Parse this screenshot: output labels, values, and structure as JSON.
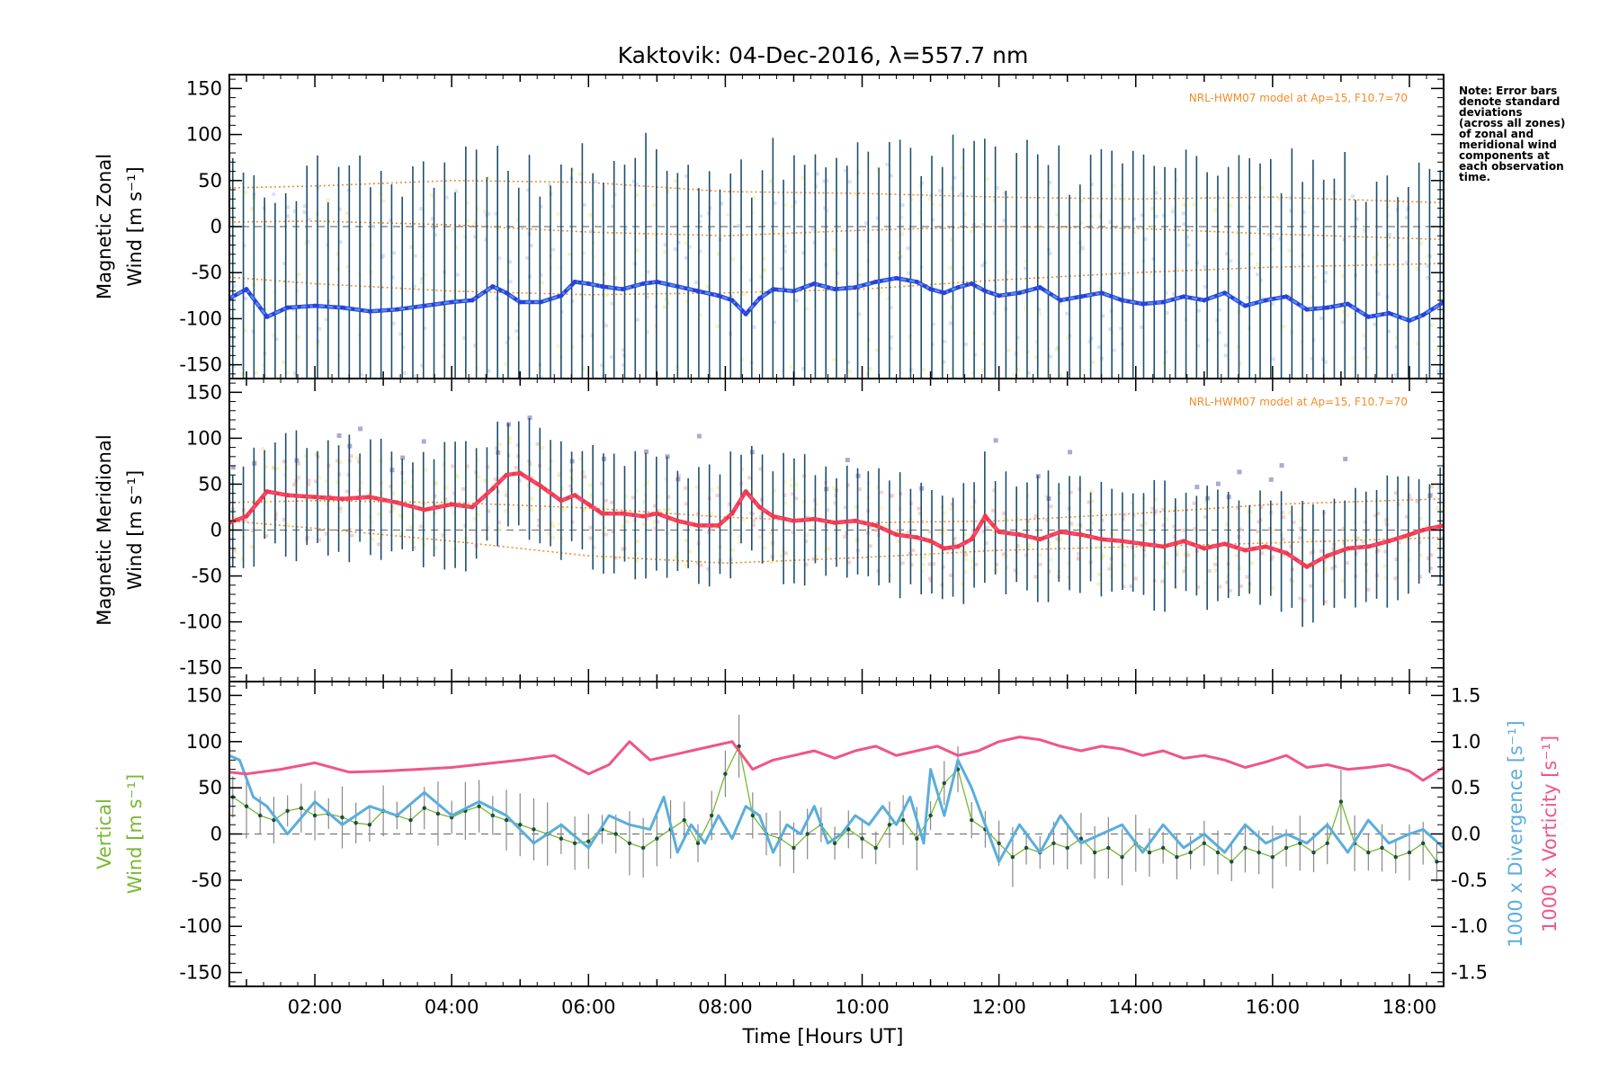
{
  "title": "Kaktovik: 04-Dec-2016, λ=557.7 nm",
  "note_lines": [
    "Note: Error bars",
    "denote standard",
    "deviations",
    "(across all zones)",
    "of zonal and",
    "meridional wind",
    "components at",
    "each observation",
    "time."
  ],
  "model_label": "NRL-HWM07 model at Ap=15, F10.7=70",
  "xlabel": "Time [Hours UT]",
  "colors": {
    "zonal": "#2a40e0",
    "zonal_light": "#5aa8e0",
    "meridional": "#f03a4a",
    "meridional_light": "#ff4f86",
    "errorbar": "#1c4f6e",
    "model": "#f28c28",
    "vertical": "#78b832",
    "divergence": "#5aaedc",
    "vorticity": "#f0548a",
    "scatter_yellow": "#f5f0a0",
    "scatter_purple": "#b0a8d0"
  },
  "chart_data": [
    {
      "type": "line",
      "panel": "zonal",
      "ylabel_line1": "Magnetic Zonal",
      "ylabel_line2": "Wind [m s⁻¹]",
      "ylim": [
        -165,
        165
      ],
      "xlim": [
        0.75,
        18.5
      ],
      "yticks": [
        -150,
        -100,
        -50,
        0,
        50,
        100,
        150
      ],
      "errorbar_halfwidth": 140,
      "series": [
        {
          "role": "measured",
          "x": [
            0.75,
            1.0,
            1.3,
            1.6,
            2.0,
            2.4,
            2.8,
            3.2,
            3.6,
            4.0,
            4.3,
            4.6,
            4.8,
            5.0,
            5.3,
            5.6,
            5.8,
            6.0,
            6.2,
            6.5,
            6.8,
            7.0,
            7.3,
            7.6,
            7.9,
            8.1,
            8.3,
            8.5,
            8.7,
            9.0,
            9.3,
            9.6,
            9.9,
            10.2,
            10.5,
            10.8,
            11.0,
            11.2,
            11.4,
            11.6,
            11.8,
            12.0,
            12.3,
            12.6,
            12.9,
            13.2,
            13.5,
            13.8,
            14.1,
            14.4,
            14.7,
            15.0,
            15.3,
            15.6,
            15.9,
            16.2,
            16.5,
            16.8,
            17.1,
            17.4,
            17.7,
            18.0,
            18.2,
            18.5
          ],
          "y": [
            -78,
            -68,
            -98,
            -88,
            -86,
            -88,
            -92,
            -90,
            -86,
            -82,
            -80,
            -65,
            -72,
            -82,
            -82,
            -75,
            -60,
            -62,
            -65,
            -68,
            -62,
            -60,
            -65,
            -70,
            -75,
            -80,
            -95,
            -78,
            -68,
            -70,
            -62,
            -68,
            -66,
            -60,
            -56,
            -60,
            -68,
            -72,
            -66,
            -62,
            -70,
            -75,
            -72,
            -66,
            -80,
            -76,
            -72,
            -80,
            -84,
            -82,
            -76,
            -80,
            -72,
            -86,
            -80,
            -76,
            -90,
            -88,
            -84,
            -98,
            -94,
            -102,
            -96,
            -82
          ]
        }
      ],
      "model_lines": [
        {
          "x": [
            0.75,
            2,
            4,
            6,
            8,
            10,
            12,
            14,
            16,
            18.5
          ],
          "y": [
            42,
            44,
            50,
            48,
            38,
            36,
            32,
            30,
            32,
            26
          ]
        },
        {
          "x": [
            0.75,
            2,
            4,
            6,
            8,
            10,
            12,
            14,
            16,
            18.5
          ],
          "y": [
            5,
            6,
            2,
            -6,
            -10,
            -4,
            0,
            -2,
            -8,
            -14
          ]
        },
        {
          "x": [
            0.75,
            2,
            4,
            6,
            8,
            10,
            12,
            14,
            16,
            18.5
          ],
          "y": [
            -55,
            -62,
            -70,
            -74,
            -72,
            -68,
            -58,
            -50,
            -44,
            -40
          ]
        }
      ]
    },
    {
      "type": "line",
      "panel": "meridional",
      "ylabel_line1": "Magnetic Meridional",
      "ylabel_line2": "Wind [m s⁻¹]",
      "ylim": [
        -165,
        165
      ],
      "xlim": [
        0.75,
        18.5
      ],
      "yticks": [
        -150,
        -100,
        -50,
        0,
        50,
        100,
        150
      ],
      "errorbar_halfwidth": 60,
      "series": [
        {
          "role": "measured",
          "x": [
            0.75,
            1.0,
            1.3,
            1.6,
            2.0,
            2.4,
            2.8,
            3.2,
            3.6,
            4.0,
            4.3,
            4.6,
            4.8,
            5.0,
            5.3,
            5.6,
            5.8,
            6.0,
            6.2,
            6.5,
            6.8,
            7.0,
            7.3,
            7.6,
            7.9,
            8.1,
            8.3,
            8.5,
            8.7,
            9.0,
            9.3,
            9.6,
            9.9,
            10.2,
            10.5,
            10.8,
            11.0,
            11.2,
            11.4,
            11.6,
            11.8,
            12.0,
            12.3,
            12.6,
            12.9,
            13.2,
            13.5,
            13.8,
            14.1,
            14.4,
            14.7,
            15.0,
            15.3,
            15.6,
            15.9,
            16.2,
            16.5,
            16.8,
            17.1,
            17.4,
            17.7,
            18.0,
            18.2,
            18.5
          ],
          "y": [
            8,
            15,
            42,
            38,
            36,
            34,
            36,
            30,
            22,
            28,
            25,
            45,
            60,
            62,
            48,
            32,
            38,
            28,
            18,
            18,
            15,
            18,
            10,
            5,
            5,
            18,
            42,
            25,
            15,
            10,
            12,
            8,
            10,
            5,
            -5,
            -8,
            -12,
            -20,
            -18,
            -10,
            15,
            -2,
            -5,
            -10,
            -2,
            -5,
            -10,
            -12,
            -15,
            -18,
            -12,
            -20,
            -15,
            -22,
            -18,
            -25,
            -40,
            -28,
            -20,
            -18,
            -12,
            -5,
            0,
            5
          ]
        }
      ],
      "model_lines": [
        {
          "x": [
            0.75,
            2,
            4,
            6,
            8,
            10,
            12,
            14,
            16,
            18.5
          ],
          "y": [
            10,
            2,
            -12,
            -28,
            -36,
            -30,
            -22,
            -18,
            -14,
            -8
          ]
        },
        {
          "x": [
            0.75,
            2,
            4,
            6,
            8,
            10,
            12,
            14,
            16,
            18.5
          ],
          "y": [
            30,
            32,
            30,
            24,
            14,
            8,
            10,
            18,
            28,
            34
          ]
        }
      ]
    },
    {
      "type": "line",
      "panel": "vertical",
      "ylabel_line1": "Vertical",
      "ylabel_line2": "Wind [m s⁻¹]",
      "ylabel_right1": "1000 x Divergence [s⁻¹]",
      "ylabel_right2": "1000 x Vorticity [s⁻¹]",
      "ylim": [
        -165,
        165
      ],
      "y2lim": [
        -1.65,
        1.65
      ],
      "xlim": [
        0.75,
        18.5
      ],
      "yticks": [
        -150,
        -100,
        -50,
        0,
        50,
        100,
        150
      ],
      "y2ticks": [
        -1.5,
        -1.0,
        -0.5,
        0.0,
        0.5,
        1.0,
        1.5
      ],
      "series": [
        {
          "name": "Vertical",
          "axis": "left",
          "x": [
            0.8,
            1.0,
            1.2,
            1.4,
            1.6,
            1.8,
            2.0,
            2.2,
            2.4,
            2.6,
            2.8,
            3.0,
            3.2,
            3.4,
            3.6,
            3.8,
            4.0,
            4.2,
            4.4,
            4.6,
            4.8,
            5.0,
            5.2,
            5.4,
            5.6,
            5.8,
            6.0,
            6.2,
            6.4,
            6.6,
            6.8,
            7.0,
            7.2,
            7.4,
            7.6,
            7.8,
            8.0,
            8.2,
            8.4,
            8.6,
            8.8,
            9.0,
            9.2,
            9.4,
            9.6,
            9.8,
            10.0,
            10.2,
            10.4,
            10.6,
            10.8,
            11.0,
            11.2,
            11.4,
            11.6,
            11.8,
            12.0,
            12.2,
            12.4,
            12.6,
            12.8,
            13.0,
            13.2,
            13.4,
            13.6,
            13.8,
            14.0,
            14.2,
            14.4,
            14.6,
            14.8,
            15.0,
            15.2,
            15.4,
            15.6,
            15.8,
            16.0,
            16.2,
            16.4,
            16.6,
            16.8,
            17.0,
            17.2,
            17.4,
            17.6,
            17.8,
            18.0,
            18.2,
            18.4
          ],
          "y": [
            40,
            30,
            20,
            15,
            25,
            28,
            20,
            22,
            18,
            12,
            10,
            25,
            20,
            15,
            28,
            22,
            18,
            25,
            30,
            20,
            15,
            10,
            5,
            0,
            -5,
            -10,
            -8,
            5,
            0,
            -10,
            -15,
            -5,
            5,
            15,
            -10,
            20,
            65,
            95,
            20,
            0,
            -5,
            -15,
            0,
            10,
            -10,
            5,
            -5,
            -15,
            10,
            15,
            -5,
            20,
            55,
            70,
            15,
            5,
            -10,
            -25,
            -15,
            -20,
            -10,
            -15,
            -5,
            -20,
            -15,
            -25,
            -10,
            -20,
            -15,
            -25,
            -20,
            -10,
            -20,
            -30,
            -15,
            -20,
            -25,
            -15,
            -10,
            -20,
            -10,
            35,
            -10,
            -20,
            -15,
            -25,
            -20,
            -10,
            -30
          ]
        },
        {
          "name": "Divergence",
          "axis": "right",
          "x": [
            0.75,
            0.9,
            1.1,
            1.3,
            1.6,
            2.0,
            2.4,
            2.8,
            3.2,
            3.6,
            4.0,
            4.4,
            4.8,
            5.2,
            5.6,
            6.0,
            6.3,
            6.6,
            6.9,
            7.1,
            7.3,
            7.5,
            7.7,
            7.9,
            8.1,
            8.3,
            8.5,
            8.7,
            8.9,
            9.1,
            9.3,
            9.5,
            9.7,
            9.9,
            10.1,
            10.3,
            10.5,
            10.7,
            10.9,
            11.0,
            11.2,
            11.4,
            11.6,
            11.8,
            12.0,
            12.3,
            12.6,
            12.9,
            13.2,
            13.5,
            13.8,
            14.1,
            14.4,
            14.7,
            15.0,
            15.3,
            15.6,
            15.9,
            16.2,
            16.5,
            16.8,
            17.1,
            17.4,
            17.7,
            18.0,
            18.2,
            18.5
          ],
          "y": [
            0.85,
            0.8,
            0.4,
            0.3,
            0.0,
            0.35,
            0.1,
            0.3,
            0.2,
            0.45,
            0.2,
            0.35,
            0.2,
            -0.1,
            0.1,
            -0.15,
            0.2,
            0.1,
            0.05,
            0.4,
            -0.2,
            0.1,
            -0.1,
            0.2,
            -0.05,
            0.3,
            0.2,
            -0.2,
            0.1,
            0.0,
            0.3,
            -0.1,
            0.0,
            0.2,
            0.1,
            0.3,
            0.1,
            0.4,
            -0.1,
            0.7,
            0.2,
            0.8,
            0.5,
            0.1,
            -0.3,
            0.1,
            -0.2,
            0.2,
            -0.1,
            0.0,
            0.1,
            -0.2,
            0.1,
            -0.15,
            0.0,
            -0.2,
            0.1,
            -0.1,
            0.0,
            -0.1,
            0.1,
            -0.2,
            0.15,
            -0.1,
            0.0,
            0.05,
            -0.15
          ]
        },
        {
          "name": "Vorticity",
          "axis": "right",
          "x": [
            0.75,
            1.0,
            1.5,
            2.0,
            2.5,
            3.0,
            3.5,
            4.0,
            4.5,
            5.0,
            5.5,
            6.0,
            6.3,
            6.6,
            6.9,
            7.2,
            7.5,
            7.8,
            8.1,
            8.4,
            8.7,
            9.0,
            9.3,
            9.6,
            9.9,
            10.2,
            10.5,
            10.8,
            11.1,
            11.4,
            11.7,
            12.0,
            12.3,
            12.6,
            12.9,
            13.2,
            13.5,
            13.8,
            14.1,
            14.4,
            14.7,
            15.0,
            15.3,
            15.6,
            15.9,
            16.2,
            16.5,
            16.8,
            17.1,
            17.4,
            17.7,
            18.0,
            18.2,
            18.5
          ],
          "y": [
            0.67,
            0.65,
            0.7,
            0.77,
            0.67,
            0.68,
            0.7,
            0.72,
            0.76,
            0.8,
            0.85,
            0.65,
            0.75,
            1.0,
            0.8,
            0.85,
            0.9,
            0.95,
            1.0,
            0.7,
            0.8,
            0.85,
            0.9,
            0.82,
            0.9,
            0.95,
            0.85,
            0.9,
            0.95,
            0.85,
            0.9,
            1.0,
            1.05,
            1.02,
            0.95,
            0.9,
            0.95,
            0.92,
            0.85,
            0.9,
            0.82,
            0.85,
            0.8,
            0.72,
            0.78,
            0.85,
            0.72,
            0.75,
            0.7,
            0.72,
            0.75,
            0.68,
            0.58,
            0.72
          ]
        }
      ]
    }
  ]
}
